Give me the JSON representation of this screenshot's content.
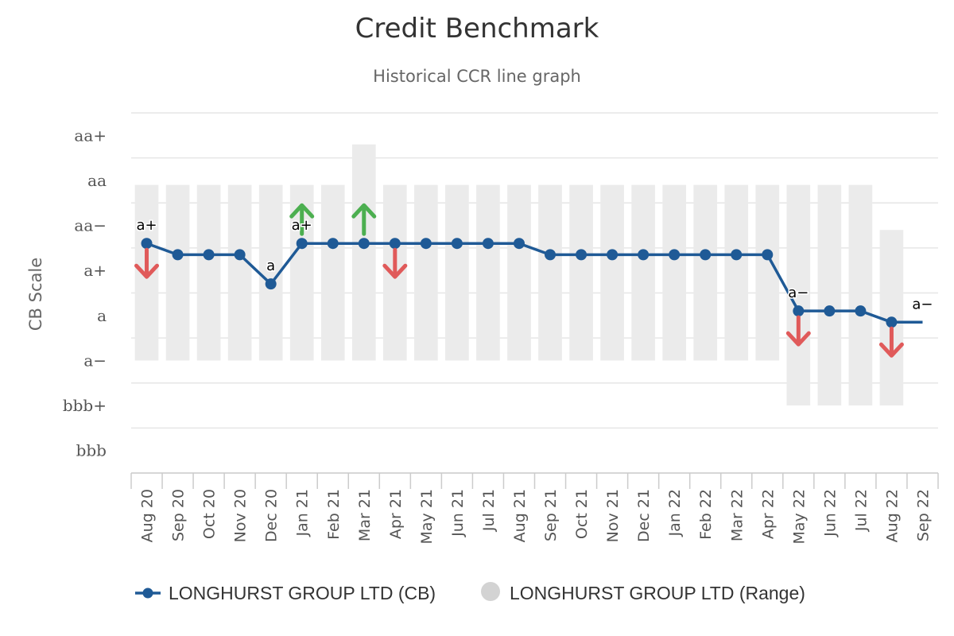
{
  "chart_data": {
    "type": "line",
    "title": "Credit Benchmark",
    "subtitle": "Historical CCR line graph",
    "ylabel": "CB Scale",
    "y_categories": [
      "bbb",
      "bbb+",
      "a−",
      "a",
      "a+",
      "aa−",
      "aa",
      "aa+"
    ],
    "ylim": [
      8,
      16
    ],
    "categories": [
      "Aug 20",
      "Sep 20",
      "Oct 20",
      "Nov 20",
      "Dec 20",
      "Jan 21",
      "Feb 21",
      "Mar 21",
      "Apr 21",
      "May 21",
      "Jun 21",
      "Jul 21",
      "Aug 21",
      "Sep 21",
      "Oct 21",
      "Nov 21",
      "Dec 21",
      "Jan 22",
      "Feb 22",
      "Mar 22",
      "Apr 22",
      "May 22",
      "Jun 22",
      "Jul 22",
      "Aug 22",
      "Sep 22"
    ],
    "series": [
      {
        "name": "LONGHURST GROUP LTD (CB)",
        "color": "#1f5a96",
        "marker": "circle",
        "values": [
          13.1,
          12.85,
          12.85,
          12.85,
          12.2,
          13.1,
          13.1,
          13.1,
          13.1,
          13.1,
          13.1,
          13.1,
          13.1,
          12.85,
          12.85,
          12.85,
          12.85,
          12.85,
          12.85,
          12.85,
          12.85,
          11.6,
          11.6,
          11.6,
          11.35,
          11.35
        ],
        "markers_shown": [
          true,
          true,
          true,
          true,
          true,
          true,
          true,
          true,
          true,
          true,
          true,
          true,
          true,
          true,
          true,
          true,
          true,
          true,
          true,
          true,
          true,
          true,
          true,
          true,
          true,
          false
        ]
      },
      {
        "name": "LONGHURST GROUP LTD (Range)",
        "type": "range",
        "color": "#ebebeb",
        "ranges": [
          [
            10.5,
            14.4
          ],
          [
            10.5,
            14.4
          ],
          [
            10.5,
            14.4
          ],
          [
            10.5,
            14.4
          ],
          [
            10.5,
            14.4
          ],
          [
            10.5,
            14.4
          ],
          [
            10.5,
            14.4
          ],
          [
            10.5,
            15.3
          ],
          [
            10.5,
            14.4
          ],
          [
            10.5,
            14.4
          ],
          [
            10.5,
            14.4
          ],
          [
            10.5,
            14.4
          ],
          [
            10.5,
            14.4
          ],
          [
            10.5,
            14.4
          ],
          [
            10.5,
            14.4
          ],
          [
            10.5,
            14.4
          ],
          [
            10.5,
            14.4
          ],
          [
            10.5,
            14.4
          ],
          [
            10.5,
            14.4
          ],
          [
            10.5,
            14.4
          ],
          [
            10.5,
            14.4
          ],
          [
            9.5,
            14.4
          ],
          [
            9.5,
            14.4
          ],
          [
            9.5,
            14.4
          ],
          [
            9.5,
            13.4
          ],
          null
        ]
      }
    ],
    "data_labels": [
      {
        "index": 0,
        "text": "a+"
      },
      {
        "index": 4,
        "text": "a"
      },
      {
        "index": 5,
        "text": "a+"
      },
      {
        "index": 21,
        "text": "a−"
      },
      {
        "index": 25,
        "text": "a−"
      }
    ],
    "arrows": [
      {
        "index": 0,
        "direction": "down",
        "color": "#e05a5a"
      },
      {
        "index": 5,
        "direction": "up",
        "color": "#4caf50"
      },
      {
        "index": 7,
        "direction": "up",
        "color": "#4caf50"
      },
      {
        "index": 8,
        "direction": "down",
        "color": "#e05a5a"
      },
      {
        "index": 21,
        "direction": "down",
        "color": "#e05a5a"
      },
      {
        "index": 24,
        "direction": "down",
        "color": "#e05a5a"
      }
    ],
    "grid": true,
    "legend_position": "bottom-left"
  }
}
